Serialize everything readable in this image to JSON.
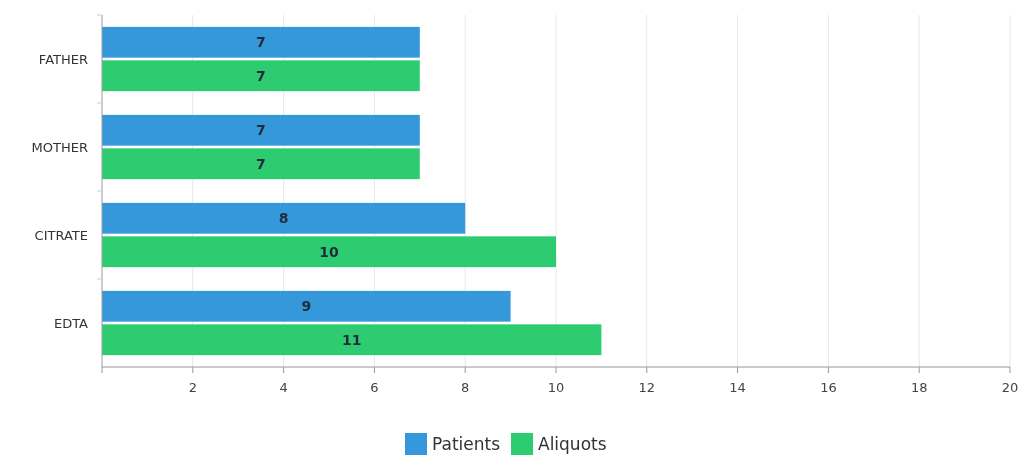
{
  "chart_data": {
    "type": "bar",
    "orientation": "horizontal",
    "categories": [
      "FATHER",
      "MOTHER",
      "CITRATE",
      "EDTA"
    ],
    "series": [
      {
        "name": "Patients",
        "color": "#3498db",
        "values": [
          7,
          7,
          8,
          9
        ]
      },
      {
        "name": "Aliquots",
        "color": "#2ecc71",
        "values": [
          7,
          7,
          10,
          11
        ]
      }
    ],
    "xlim": [
      0,
      20
    ],
    "xticks": [
      {
        "value": 0,
        "label": null
      },
      2,
      4,
      6,
      8,
      10,
      12,
      14,
      16,
      18,
      20
    ],
    "grid": "x",
    "legend": "bottom",
    "data_labels": true
  }
}
